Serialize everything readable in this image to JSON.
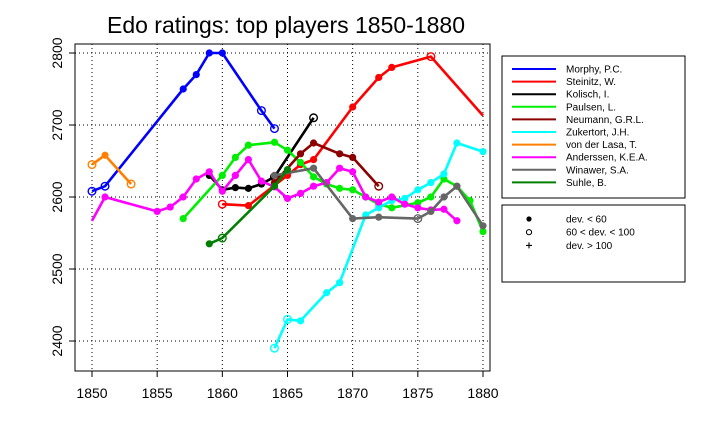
{
  "chart_data": {
    "type": "line",
    "title": "Edo ratings: top players 1850-1880",
    "xlabel": "",
    "ylabel": "",
    "xlim": [
      1848,
      1882
    ],
    "ylim": [
      2355,
      2820
    ],
    "xticks": [
      1850,
      1855,
      1860,
      1865,
      1870,
      1875,
      1880
    ],
    "yticks": [
      2400,
      2500,
      2600,
      2700,
      2800
    ],
    "grid": true,
    "legend_position": "right",
    "series": [
      {
        "name": "Morphy, P.C.",
        "color": "#0000ff",
        "x": [
          1850,
          1851,
          1857,
          1858,
          1859,
          1860,
          1863,
          1864
        ],
        "y": [
          2608,
          2615,
          2750,
          2770,
          2800,
          2800,
          2720,
          2695
        ],
        "markers": [
          "open",
          "open",
          "filled",
          "filled",
          "filled",
          "filled",
          "open",
          "open"
        ]
      },
      {
        "name": "Steinitz, W.",
        "color": "#ff0000",
        "x": [
          1860,
          1862,
          1865,
          1866,
          1867,
          1870,
          1872,
          1873,
          1876,
          1880
        ],
        "y": [
          2590,
          2588,
          2630,
          2645,
          2652,
          2725,
          2766,
          2780,
          2795,
          2713
        ],
        "markers": [
          "open",
          "filled",
          "filled",
          "filled",
          "filled",
          "filled",
          "filled",
          "filled",
          "open",
          "none"
        ]
      },
      {
        "name": "Kolisch, I.",
        "color": "#000000",
        "x": [
          1859,
          1860,
          1861,
          1862,
          1863,
          1864,
          1867
        ],
        "y": [
          2630,
          2610,
          2613,
          2612,
          2618,
          2628,
          2710
        ],
        "markers": [
          "filled",
          "filled",
          "filled",
          "filled",
          "filled",
          "open",
          "open"
        ]
      },
      {
        "name": "Paulsen, L.",
        "color": "#00ee00",
        "x": [
          1857,
          1860,
          1861,
          1862,
          1864,
          1865,
          1866,
          1867,
          1868,
          1869,
          1870,
          1871,
          1872,
          1873,
          1875,
          1876,
          1877,
          1878,
          1879,
          1880
        ],
        "y": [
          2570,
          2630,
          2655,
          2672,
          2676,
          2665,
          2648,
          2628,
          2618,
          2612,
          2610,
          2600,
          2590,
          2585,
          2592,
          2600,
          2625,
          2615,
          2595,
          2552
        ],
        "markers": [
          "filled",
          "filled",
          "filled",
          "filled",
          "filled",
          "filled",
          "filled",
          "filled",
          "filled",
          "filled",
          "filled",
          "filled",
          "filled",
          "filled",
          "filled",
          "filled",
          "filled",
          "filled",
          "filled",
          "filled"
        ]
      },
      {
        "name": "Neumann, G.R.L.",
        "color": "#8b0000",
        "x": [
          1864,
          1866,
          1867,
          1869,
          1870,
          1872
        ],
        "y": [
          2620,
          2660,
          2675,
          2660,
          2655,
          2615
        ],
        "markers": [
          "filled",
          "filled",
          "filled",
          "filled",
          "filled",
          "open"
        ]
      },
      {
        "name": "Zukertort, J.H.",
        "color": "#00ffff",
        "x": [
          1864,
          1865,
          1866,
          1868,
          1869,
          1871,
          1872,
          1873,
          1874,
          1875,
          1876,
          1877,
          1878,
          1880
        ],
        "y": [
          2390,
          2430,
          2428,
          2467,
          2481,
          2575,
          2585,
          2595,
          2598,
          2610,
          2620,
          2632,
          2675,
          2663
        ],
        "markers": [
          "open",
          "open",
          "filled",
          "filled",
          "filled",
          "filled",
          "filled",
          "filled",
          "filled",
          "filled",
          "filled",
          "filled",
          "filled",
          "filled"
        ]
      },
      {
        "name": "von der Lasa, T.",
        "color": "#ff8000",
        "x": [
          1850,
          1851,
          1853
        ],
        "y": [
          2645,
          2658,
          2618
        ],
        "markers": [
          "open",
          "filled",
          "open"
        ]
      },
      {
        "name": "Anderssen, K.E.A.",
        "color": "#ff00ff",
        "x": [
          1850,
          1851,
          1855,
          1856,
          1857,
          1858,
          1859,
          1860,
          1861,
          1862,
          1863,
          1864,
          1865,
          1866,
          1867,
          1868,
          1869,
          1870,
          1871,
          1872,
          1873,
          1874,
          1875,
          1876,
          1877,
          1878
        ],
        "y": [
          2567,
          2600,
          2580,
          2586,
          2600,
          2625,
          2635,
          2608,
          2630,
          2652,
          2622,
          2614,
          2598,
          2605,
          2615,
          2620,
          2640,
          2635,
          2600,
          2593,
          2600,
          2590,
          2585,
          2582,
          2583,
          2567
        ],
        "markers": [
          "none",
          "filled",
          "filled",
          "filled",
          "filled",
          "filled",
          "filled",
          "filled",
          "filled",
          "filled",
          "filled",
          "filled",
          "filled",
          "filled",
          "filled",
          "filled",
          "filled",
          "filled",
          "filled",
          "filled",
          "filled",
          "filled",
          "filled",
          "filled",
          "filled",
          "filled"
        ]
      },
      {
        "name": "Winawer, S.A.",
        "color": "#666666",
        "x": [
          1864,
          1867,
          1870,
          1872,
          1875,
          1876,
          1877,
          1878,
          1880
        ],
        "y": [
          2630,
          2640,
          2570,
          2572,
          2570,
          2580,
          2600,
          2615,
          2560
        ],
        "markers": [
          "filled",
          "filled",
          "filled",
          "filled",
          "open",
          "filled",
          "filled",
          "filled",
          "filled"
        ]
      },
      {
        "name": "Suhle, B.",
        "color": "#008000",
        "x": [
          1859,
          1860,
          1864,
          1865
        ],
        "y": [
          2535,
          2543,
          2615,
          2638
        ],
        "markers": [
          "filled",
          "open",
          "filled",
          "filled"
        ]
      }
    ],
    "marker_key": [
      {
        "symbol": "filled",
        "label": "dev. < 60"
      },
      {
        "symbol": "open",
        "label": "60 < dev. < 100"
      },
      {
        "symbol": "plus",
        "label": "dev. > 100"
      }
    ]
  }
}
